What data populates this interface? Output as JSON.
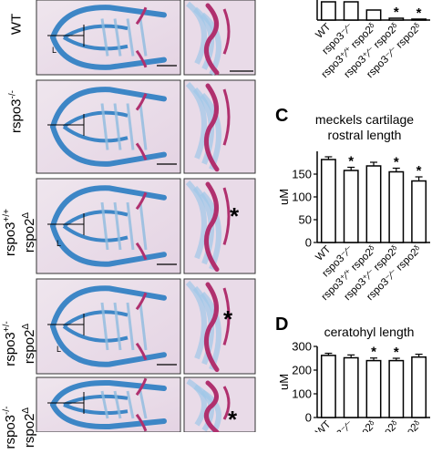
{
  "rows": [
    {
      "label_main": "WT",
      "label_sup": ""
    },
    {
      "label_main": "rspo3",
      "label_sup": "-/-"
    },
    {
      "label_main": "rspo3",
      "label_sup": "+/+",
      "label_line2": "rspo2",
      "label_line2_sup": "Δ"
    },
    {
      "label_main": "rspo3",
      "label_sup": "+/-",
      "label_line2": "rspo2",
      "label_line2_sup": "Δ"
    },
    {
      "label_main": "rspo3",
      "label_sup": "-/-",
      "label_line2": "rspo2",
      "label_line2_sup": "Δ"
    }
  ],
  "measure_label": "L",
  "asterisk": "*",
  "panel_letters": {
    "c": "C",
    "d": "D"
  },
  "genotype_labels": [
    "WT",
    "rspo3⁻⁄⁻",
    "rspo3⁺⁄⁺ rspo2ᵟ",
    "rspo3⁺⁄⁻ rspo2ᵟ",
    "rspo3⁻⁄⁻ rspo2ᵟ"
  ],
  "colors": {
    "cartilage_blue": "#3d86c6",
    "bone_magenta": "#b0306e",
    "bar_fill": "#ffffff"
  },
  "chart_data": [
    {
      "type": "bar",
      "panel": "B",
      "title": "",
      "categories": [
        "WT",
        "rspo3-/-",
        "rspo3+/+ rspo2Δ",
        "rspo3+/- rspo2Δ",
        "rspo3-/- rspo2Δ"
      ],
      "values": [
        1.0,
        1.0,
        0.55,
        0.1,
        0.05
      ],
      "significant": [
        false,
        false,
        false,
        true,
        true
      ],
      "ylabel": "",
      "ylim": [
        0,
        1.2
      ]
    },
    {
      "type": "bar",
      "panel": "C",
      "title": "meckels cartilage rostral length",
      "title_line1": "meckels cartilage",
      "title_line2": "rostral length",
      "categories": [
        "WT",
        "rspo3-/-",
        "rspo3+/+ rspo2Δ",
        "rspo3+/- rspo2Δ",
        "rspo3-/- rspo2Δ"
      ],
      "values": [
        182,
        158,
        168,
        155,
        135
      ],
      "errors": [
        6,
        7,
        8,
        8,
        9
      ],
      "significant": [
        false,
        true,
        false,
        true,
        true
      ],
      "ylabel": "uM",
      "yticks": [
        0,
        50,
        100,
        150
      ],
      "ylim": [
        0,
        200
      ]
    },
    {
      "type": "bar",
      "panel": "D",
      "title": "ceratohyl length",
      "categories": [
        "WT",
        "rspo3-/-",
        "rspo3+/+ rspo2Δ",
        "rspo3+/- rspo2Δ",
        "rspo3-/- rspo2Δ"
      ],
      "values": [
        262,
        252,
        240,
        240,
        255
      ],
      "errors": [
        9,
        12,
        11,
        10,
        12
      ],
      "significant": [
        false,
        false,
        true,
        true,
        false
      ],
      "ylabel": "uM",
      "yticks": [
        0,
        100,
        200,
        300
      ],
      "ylim": [
        0,
        300
      ]
    }
  ]
}
